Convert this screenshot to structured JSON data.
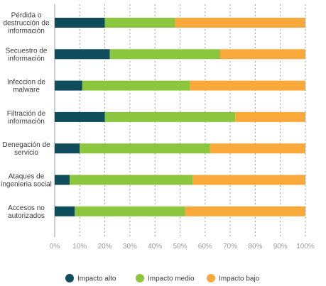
{
  "chart_data": {
    "type": "bar",
    "orientation": "horizontal",
    "stacked": true,
    "title": "",
    "xlabel": "",
    "ylabel": "",
    "xlim": [
      0,
      100
    ],
    "x_ticks": [
      "0%",
      "10%",
      "20%",
      "30%",
      "40%",
      "50%",
      "60%",
      "70%",
      "80%",
      "90%",
      "100%"
    ],
    "grid": "vertical dotted",
    "legend_position": "bottom",
    "categories": [
      [
        "Pérdida o",
        "destrucción de",
        "información"
      ],
      [
        "Secuestro de",
        "información"
      ],
      [
        "Infeccion de",
        "malware"
      ],
      [
        "Filtración de",
        "información"
      ],
      [
        "Denegación de",
        "servicio"
      ],
      [
        "Ataques de",
        "ingenieria social"
      ],
      [
        "Accesos no",
        "autorizados"
      ]
    ],
    "series": [
      {
        "name": "Impacto alto",
        "color": "#0f4c5c",
        "values": [
          20,
          22,
          11,
          20,
          10,
          6,
          8
        ]
      },
      {
        "name": "Impacto medio",
        "color": "#8cc63f",
        "values": [
          28,
          44,
          43,
          52,
          52,
          49,
          44
        ]
      },
      {
        "name": "Impacto bajo",
        "color": "#f9a93a",
        "values": [
          52,
          34,
          46,
          28,
          38,
          45,
          48
        ]
      }
    ]
  }
}
